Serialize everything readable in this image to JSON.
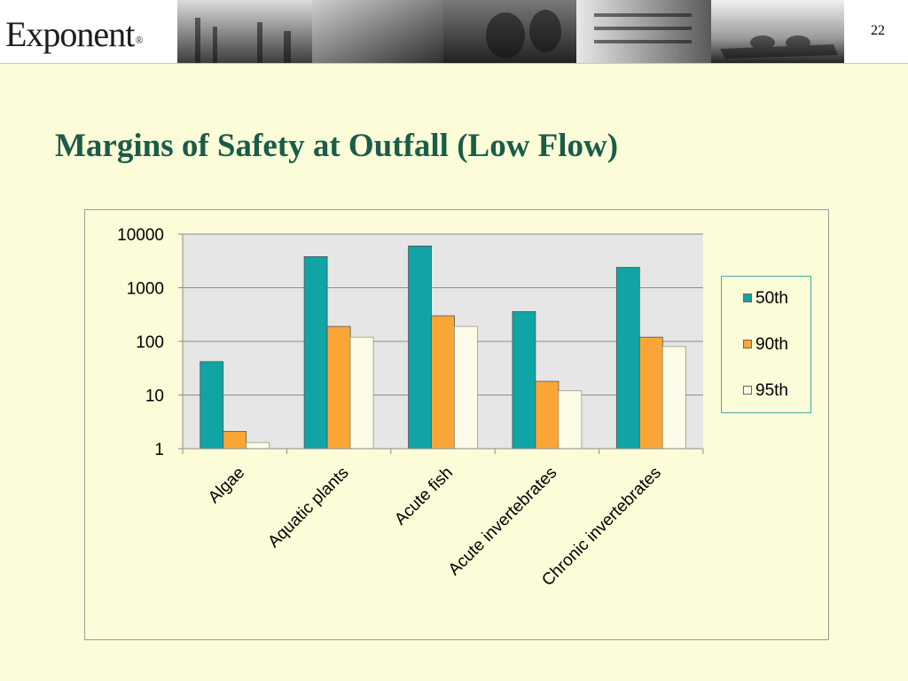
{
  "header": {
    "logo_text": "Exponent",
    "logo_mark": "®",
    "page_number": "22"
  },
  "slide": {
    "title": "Margins of Safety at Outfall (Low Flow)"
  },
  "colors": {
    "background": "#fdfcd8",
    "title": "#1a5c48",
    "plot_area": "#e6e6e6"
  },
  "chart_data": {
    "type": "bar",
    "title": "",
    "xlabel": "",
    "ylabel": "",
    "yscale": "log",
    "ylim": [
      1,
      10000
    ],
    "yticks": [
      "1",
      "10",
      "100",
      "1000",
      "10000"
    ],
    "grid": true,
    "legend_position": "right",
    "categories": [
      "Algae",
      "Aquatic plants",
      "Acute fish",
      "Acute invertebrates",
      "Chronic invertebrates"
    ],
    "series": [
      {
        "name": "50th",
        "color": "#10a4a4",
        "values": [
          42,
          3800,
          6000,
          360,
          2400
        ]
      },
      {
        "name": "90th",
        "color": "#faa637",
        "values": [
          2.1,
          190,
          300,
          18,
          120
        ]
      },
      {
        "name": "95th",
        "color": "#fdfce8",
        "values": [
          1.3,
          120,
          190,
          12,
          80
        ]
      }
    ]
  }
}
